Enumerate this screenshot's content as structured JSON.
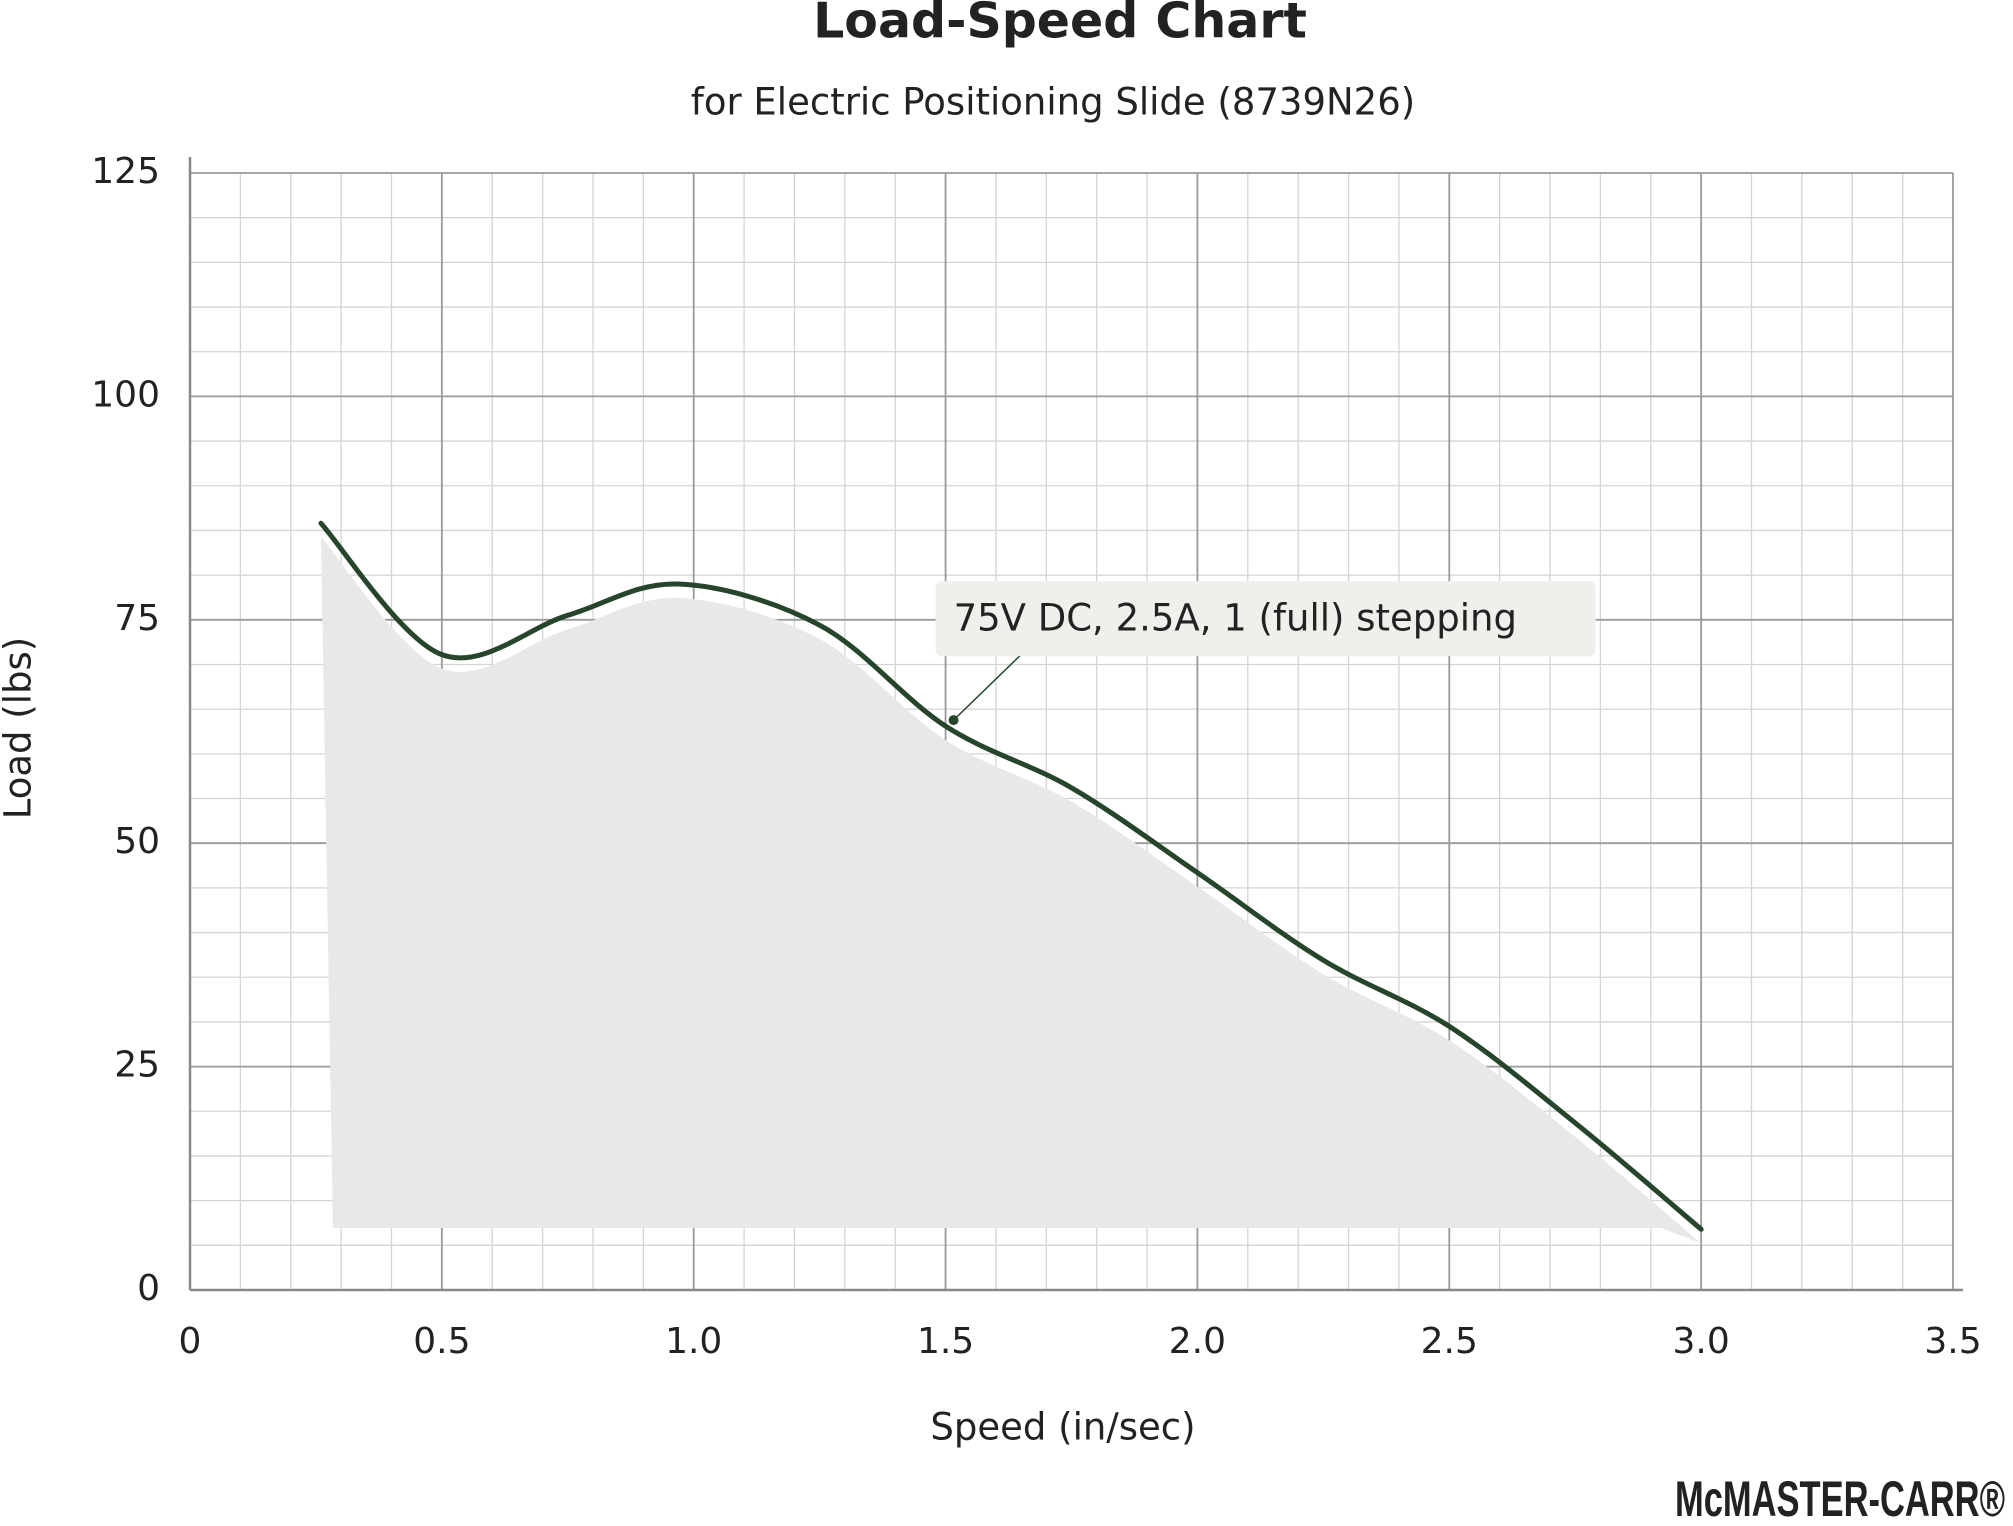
{
  "chart_data": {
    "type": "line",
    "title": "Load-Speed Chart",
    "subtitle": "for Electric Positioning Slide (8739N26)",
    "x_label": "Speed (in/sec)",
    "y_label": "Load (lbs)",
    "logo": "McMASTER-CARR®",
    "x": [
      0.26,
      0.5,
      0.75,
      0.97,
      1.25,
      1.5,
      1.75,
      2.0,
      2.25,
      2.5,
      2.75,
      3.0
    ],
    "series": [
      {
        "name": "75V DC, 2.5A, 1 (full) stepping",
        "color": "#26452a",
        "values": [
          85.8,
          71.1,
          75.5,
          79,
          74.4,
          63.1,
          56.2,
          46.7,
          36.9,
          29.5,
          18.7,
          6.8
        ]
      }
    ],
    "xlim": [
      0,
      3.5
    ],
    "xticks": [
      0,
      0.5,
      {
        "value": 1,
        "label": "1.0"
      },
      1.5,
      {
        "value": 2,
        "label": "2.0"
      },
      2.5,
      {
        "value": 3,
        "label": "3.0"
      },
      3.5
    ],
    "ylim": [
      0,
      125
    ],
    "yticks": [
      0,
      25,
      50,
      75,
      100,
      125
    ],
    "grid": true,
    "fill": "#e6e9e5"
  }
}
